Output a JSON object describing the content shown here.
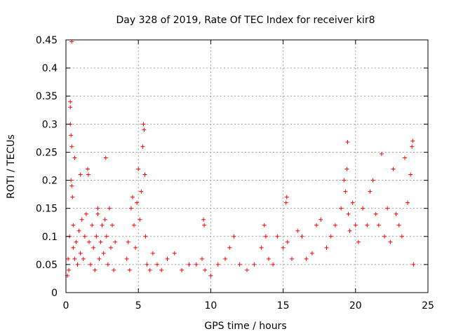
{
  "chart_data": {
    "type": "scatter",
    "title": "Day 328 of 2019, Rate Of TEC Index for receiver kir8",
    "xlabel": "GPS time / hours",
    "ylabel": "ROTI / TECUs",
    "xlim": [
      0,
      25
    ],
    "ylim": [
      0,
      0.45
    ],
    "xticks": [
      0,
      5,
      10,
      15,
      20,
      25
    ],
    "xtick_labels": [
      "0",
      "5",
      "10",
      "15",
      "20",
      "25"
    ],
    "yticks": [
      0,
      0.05,
      0.1,
      0.15,
      0.2,
      0.25,
      0.3,
      0.35,
      0.4,
      0.45
    ],
    "ytick_labels": [
      "0",
      "0.05",
      "0.1",
      "0.15",
      "0.2",
      "0.25",
      "0.3",
      "0.35",
      "0.4",
      "0.45"
    ],
    "grid": true,
    "marker": "+",
    "color": "#ff0000",
    "series": [
      {
        "points": [
          [
            0.1,
            0.03
          ],
          [
            0.15,
            0.06
          ],
          [
            0.2,
            0.04
          ],
          [
            0.25,
            0.1
          ],
          [
            0.3,
            0.3
          ],
          [
            0.3,
            0.34
          ],
          [
            0.3,
            0.33
          ],
          [
            0.35,
            0.28
          ],
          [
            0.4,
            0.447
          ],
          [
            0.4,
            0.26
          ],
          [
            0.35,
            0.2
          ],
          [
            0.4,
            0.19
          ],
          [
            0.45,
            0.17
          ],
          [
            0.5,
            0.12
          ],
          [
            0.5,
            0.08
          ],
          [
            0.6,
            0.06
          ],
          [
            0.7,
            0.09
          ],
          [
            0.8,
            0.05
          ],
          [
            0.9,
            0.11
          ],
          [
            1.0,
            0.07
          ],
          [
            1.1,
            0.13
          ],
          [
            1.2,
            0.06
          ],
          [
            1.3,
            0.1
          ],
          [
            1.4,
            0.14
          ],
          [
            1.5,
            0.22
          ],
          [
            1.55,
            0.21
          ],
          [
            1.6,
            0.09
          ],
          [
            1.7,
            0.05
          ],
          [
            1.8,
            0.12
          ],
          [
            1.9,
            0.08
          ],
          [
            2.0,
            0.04
          ],
          [
            2.1,
            0.1
          ],
          [
            2.2,
            0.14
          ],
          [
            2.3,
            0.06
          ],
          [
            2.4,
            0.09
          ],
          [
            2.5,
            0.12
          ],
          [
            2.6,
            0.07
          ],
          [
            2.7,
            0.13
          ],
          [
            2.75,
            0.24
          ],
          [
            2.8,
            0.1
          ],
          [
            2.9,
            0.05
          ],
          [
            3.0,
            0.15
          ],
          [
            3.1,
            0.08
          ],
          [
            3.2,
            0.12
          ],
          [
            3.3,
            0.04
          ],
          [
            3.4,
            0.09
          ],
          [
            1.0,
            0.21
          ],
          [
            0.6,
            0.24
          ],
          [
            2.2,
            0.15
          ],
          [
            4.2,
            0.06
          ],
          [
            4.3,
            0.09
          ],
          [
            4.4,
            0.04
          ],
          [
            4.5,
            0.15
          ],
          [
            4.6,
            0.17
          ],
          [
            4.7,
            0.12
          ],
          [
            4.8,
            0.08
          ],
          [
            4.9,
            0.16
          ],
          [
            5.0,
            0.22
          ],
          [
            5.1,
            0.13
          ],
          [
            5.2,
            0.18
          ],
          [
            5.3,
            0.26
          ],
          [
            5.35,
            0.3
          ],
          [
            5.4,
            0.29
          ],
          [
            5.45,
            0.21
          ],
          [
            5.5,
            0.1
          ],
          [
            5.6,
            0.05
          ],
          [
            5.8,
            0.04
          ],
          [
            6.0,
            0.07
          ],
          [
            6.3,
            0.05
          ],
          [
            6.6,
            0.04
          ],
          [
            7.0,
            0.06
          ],
          [
            7.5,
            0.07
          ],
          [
            8.0,
            0.04
          ],
          [
            8.5,
            0.05
          ],
          [
            9.0,
            0.05
          ],
          [
            9.4,
            0.06
          ],
          [
            9.5,
            0.13
          ],
          [
            9.55,
            0.12
          ],
          [
            9.6,
            0.04
          ],
          [
            10.0,
            0.03
          ],
          [
            10.5,
            0.05
          ],
          [
            11.0,
            0.06
          ],
          [
            11.3,
            0.08
          ],
          [
            11.6,
            0.1
          ],
          [
            12.0,
            0.05
          ],
          [
            12.5,
            0.04
          ],
          [
            13.0,
            0.05
          ],
          [
            13.5,
            0.08
          ],
          [
            13.7,
            0.12
          ],
          [
            13.8,
            0.1
          ],
          [
            14.0,
            0.06
          ],
          [
            14.3,
            0.05
          ],
          [
            14.6,
            0.1
          ],
          [
            15.0,
            0.08
          ],
          [
            15.2,
            0.16
          ],
          [
            15.25,
            0.17
          ],
          [
            15.3,
            0.09
          ],
          [
            15.6,
            0.06
          ],
          [
            16.0,
            0.11
          ],
          [
            16.3,
            0.1
          ],
          [
            16.6,
            0.06
          ],
          [
            17.0,
            0.07
          ],
          [
            17.3,
            0.12
          ],
          [
            17.6,
            0.13
          ],
          [
            18.0,
            0.08
          ],
          [
            18.3,
            0.1
          ],
          [
            18.6,
            0.12
          ],
          [
            19.0,
            0.15
          ],
          [
            19.2,
            0.2
          ],
          [
            19.3,
            0.18
          ],
          [
            19.4,
            0.22
          ],
          [
            19.45,
            0.268
          ],
          [
            19.5,
            0.14
          ],
          [
            19.6,
            0.11
          ],
          [
            19.8,
            0.16
          ],
          [
            20.0,
            0.12
          ],
          [
            20.2,
            0.09
          ],
          [
            20.5,
            0.15
          ],
          [
            20.8,
            0.12
          ],
          [
            21.0,
            0.18
          ],
          [
            21.2,
            0.2
          ],
          [
            21.4,
            0.14
          ],
          [
            21.6,
            0.12
          ],
          [
            21.8,
            0.247
          ],
          [
            22.0,
            0.1
          ],
          [
            22.2,
            0.15
          ],
          [
            22.4,
            0.09
          ],
          [
            22.6,
            0.22
          ],
          [
            22.8,
            0.14
          ],
          [
            23.0,
            0.12
          ],
          [
            23.2,
            0.1
          ],
          [
            23.4,
            0.24
          ],
          [
            23.6,
            0.16
          ],
          [
            23.8,
            0.21
          ],
          [
            23.9,
            0.26
          ],
          [
            23.95,
            0.27
          ],
          [
            24.0,
            0.05
          ]
        ]
      }
    ]
  }
}
